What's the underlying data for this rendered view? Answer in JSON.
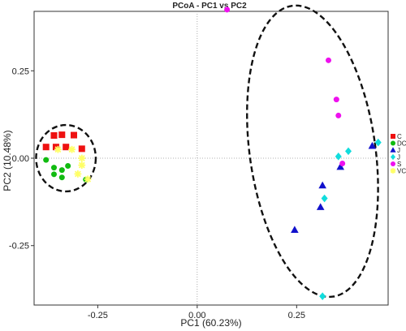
{
  "chart_data": {
    "type": "scatter",
    "title": "PCoA - PC1 vs PC2",
    "xlabel": "PC1 (60.23%)",
    "ylabel": "PC2 (10.48%)",
    "xlim": [
      -0.41,
      0.48
    ],
    "ylim": [
      -0.42,
      0.42
    ],
    "x_ticks": [
      {
        "value": -0.25,
        "label": "-0.25"
      },
      {
        "value": 0,
        "label": "0.00"
      },
      {
        "value": 0.25,
        "label": "0.25"
      }
    ],
    "y_ticks": [
      {
        "value": -0.25,
        "label": "-0.25"
      },
      {
        "value": 0,
        "label": "0.00"
      },
      {
        "value": 0.25,
        "label": "0.25"
      }
    ],
    "reference_lines": {
      "x": 0,
      "y": 0,
      "style": "dotted"
    },
    "legend_position": "right",
    "series": [
      {
        "name": "C",
        "color": "#ee1111",
        "marker": "square",
        "points": [
          [
            -0.38,
            0.032
          ],
          [
            -0.36,
            0.065
          ],
          [
            -0.34,
            0.067
          ],
          [
            -0.31,
            0.066
          ],
          [
            -0.355,
            0.032
          ],
          [
            -0.33,
            0.032
          ],
          [
            -0.29,
            0.027
          ]
        ]
      },
      {
        "name": "DC",
        "color": "#11bb11",
        "marker": "circle",
        "points": [
          [
            -0.38,
            -0.005
          ],
          [
            -0.36,
            -0.027
          ],
          [
            -0.34,
            -0.034
          ],
          [
            -0.325,
            -0.022
          ],
          [
            -0.36,
            -0.046
          ],
          [
            -0.34,
            -0.055
          ],
          [
            -0.28,
            -0.061
          ]
        ]
      },
      {
        "name": "J",
        "color": "#1111cc",
        "marker": "triangle",
        "points": [
          [
            0.44,
            0.035
          ],
          [
            0.36,
            -0.025
          ],
          [
            0.315,
            -0.078
          ],
          [
            0.31,
            -0.14
          ],
          [
            0.245,
            -0.205
          ]
        ]
      },
      {
        "name": "J",
        "color": "#11dddd",
        "marker": "diamond",
        "points": [
          [
            0.38,
            0.02
          ],
          [
            0.355,
            0.005
          ],
          [
            0.455,
            0.045
          ],
          [
            0.32,
            -0.115
          ],
          [
            0.315,
            -0.395
          ]
        ]
      },
      {
        "name": "S",
        "color": "#ee11ee",
        "marker": "circle",
        "points": [
          [
            0.075,
            0.425
          ],
          [
            0.33,
            0.28
          ],
          [
            0.35,
            0.168
          ],
          [
            0.355,
            0.122
          ],
          [
            0.365,
            -0.015
          ]
        ]
      },
      {
        "name": "VC",
        "color": "#ffff66",
        "marker": "asterisk",
        "points": [
          [
            -0.35,
            0.025
          ],
          [
            -0.315,
            0.025
          ],
          [
            -0.29,
            0.0
          ],
          [
            -0.29,
            -0.02
          ],
          [
            -0.3,
            -0.045
          ],
          [
            -0.275,
            -0.06
          ]
        ]
      }
    ],
    "ellipses": [
      {
        "cx": -0.33,
        "cy": 0.0,
        "rx": 0.075,
        "ry": 0.095,
        "angle": 0,
        "style": "dashed"
      },
      {
        "cx": 0.29,
        "cy": 0.02,
        "rx": 0.158,
        "ry": 0.42,
        "angle": -8,
        "style": "dashed"
      }
    ],
    "legend": [
      {
        "label": "C",
        "color": "#ee1111",
        "marker": "square"
      },
      {
        "label": "DC",
        "color": "#11bb11",
        "marker": "circle"
      },
      {
        "label": "J",
        "color": "#1111cc",
        "marker": "triangle"
      },
      {
        "label": "J",
        "color": "#11dddd",
        "marker": "diamond"
      },
      {
        "label": "S",
        "color": "#ee11ee",
        "marker": "circle"
      },
      {
        "label": "VC",
        "color": "#ffff66",
        "marker": "asterisk"
      }
    ]
  }
}
